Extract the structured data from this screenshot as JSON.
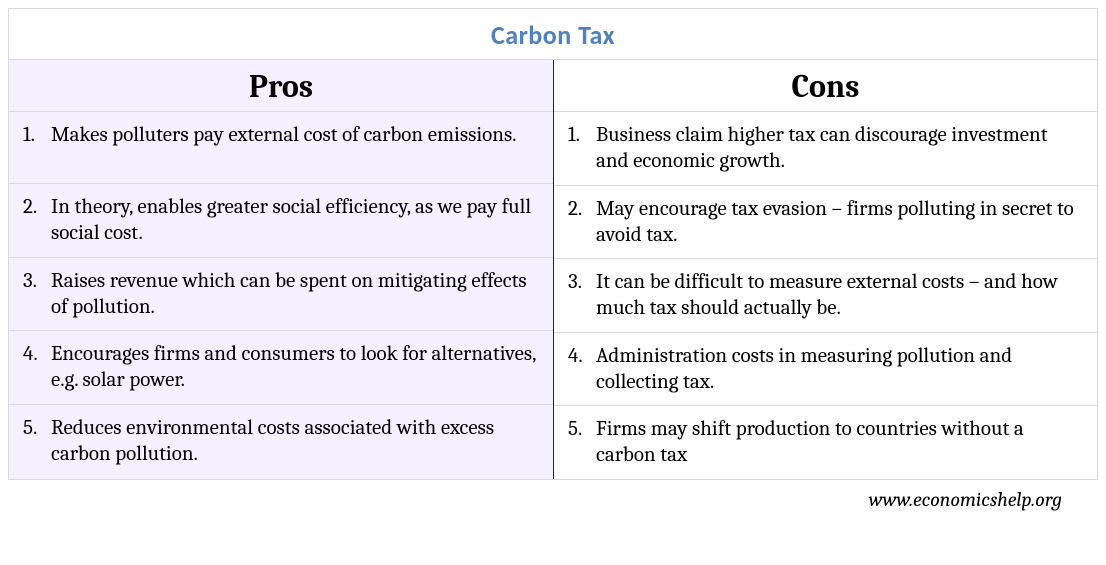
{
  "title": "Carbon Tax",
  "title_color": "#4f81bd",
  "pros_header": "Pros",
  "cons_header": "Cons",
  "pros_bg": "#f5efff",
  "cons_bg": "#ffffff",
  "border_color": "#d9d9d9",
  "divider_color": "#222222",
  "body_fontsize": 21,
  "header_fontsize": 32,
  "title_fontsize": 26,
  "pros": [
    {
      "n": "1.",
      "text": "Makes polluters pay external cost of carbon emissions."
    },
    {
      "n": "2.",
      "text": "In theory, enables greater social efficiency, as we pay full social cost."
    },
    {
      "n": "3.",
      "text": " Raises revenue which can be spent on mitigating effects of pollution."
    },
    {
      "n": "4.",
      "text": " Encourages firms and consumers to look for alternatives, e.g. solar power."
    },
    {
      "n": "5.",
      "text": " Reduces environmental costs associated with excess carbon pollution."
    }
  ],
  "cons": [
    {
      "n": "1.",
      "text": "Business claim higher tax can discourage investment and economic growth."
    },
    {
      "n": "2.",
      "text": "May encourage tax evasion – firms polluting in secret to avoid tax."
    },
    {
      "n": "3.",
      "text": "It can be difficult to measure external costs – and how much tax should actually be."
    },
    {
      "n": "4.",
      "text": " Administration costs in measuring pollution and collecting tax."
    },
    {
      "n": "5.",
      "text": " Firms may shift production to countries without a carbon tax"
    }
  ],
  "footer": "www.economicshelp.org"
}
